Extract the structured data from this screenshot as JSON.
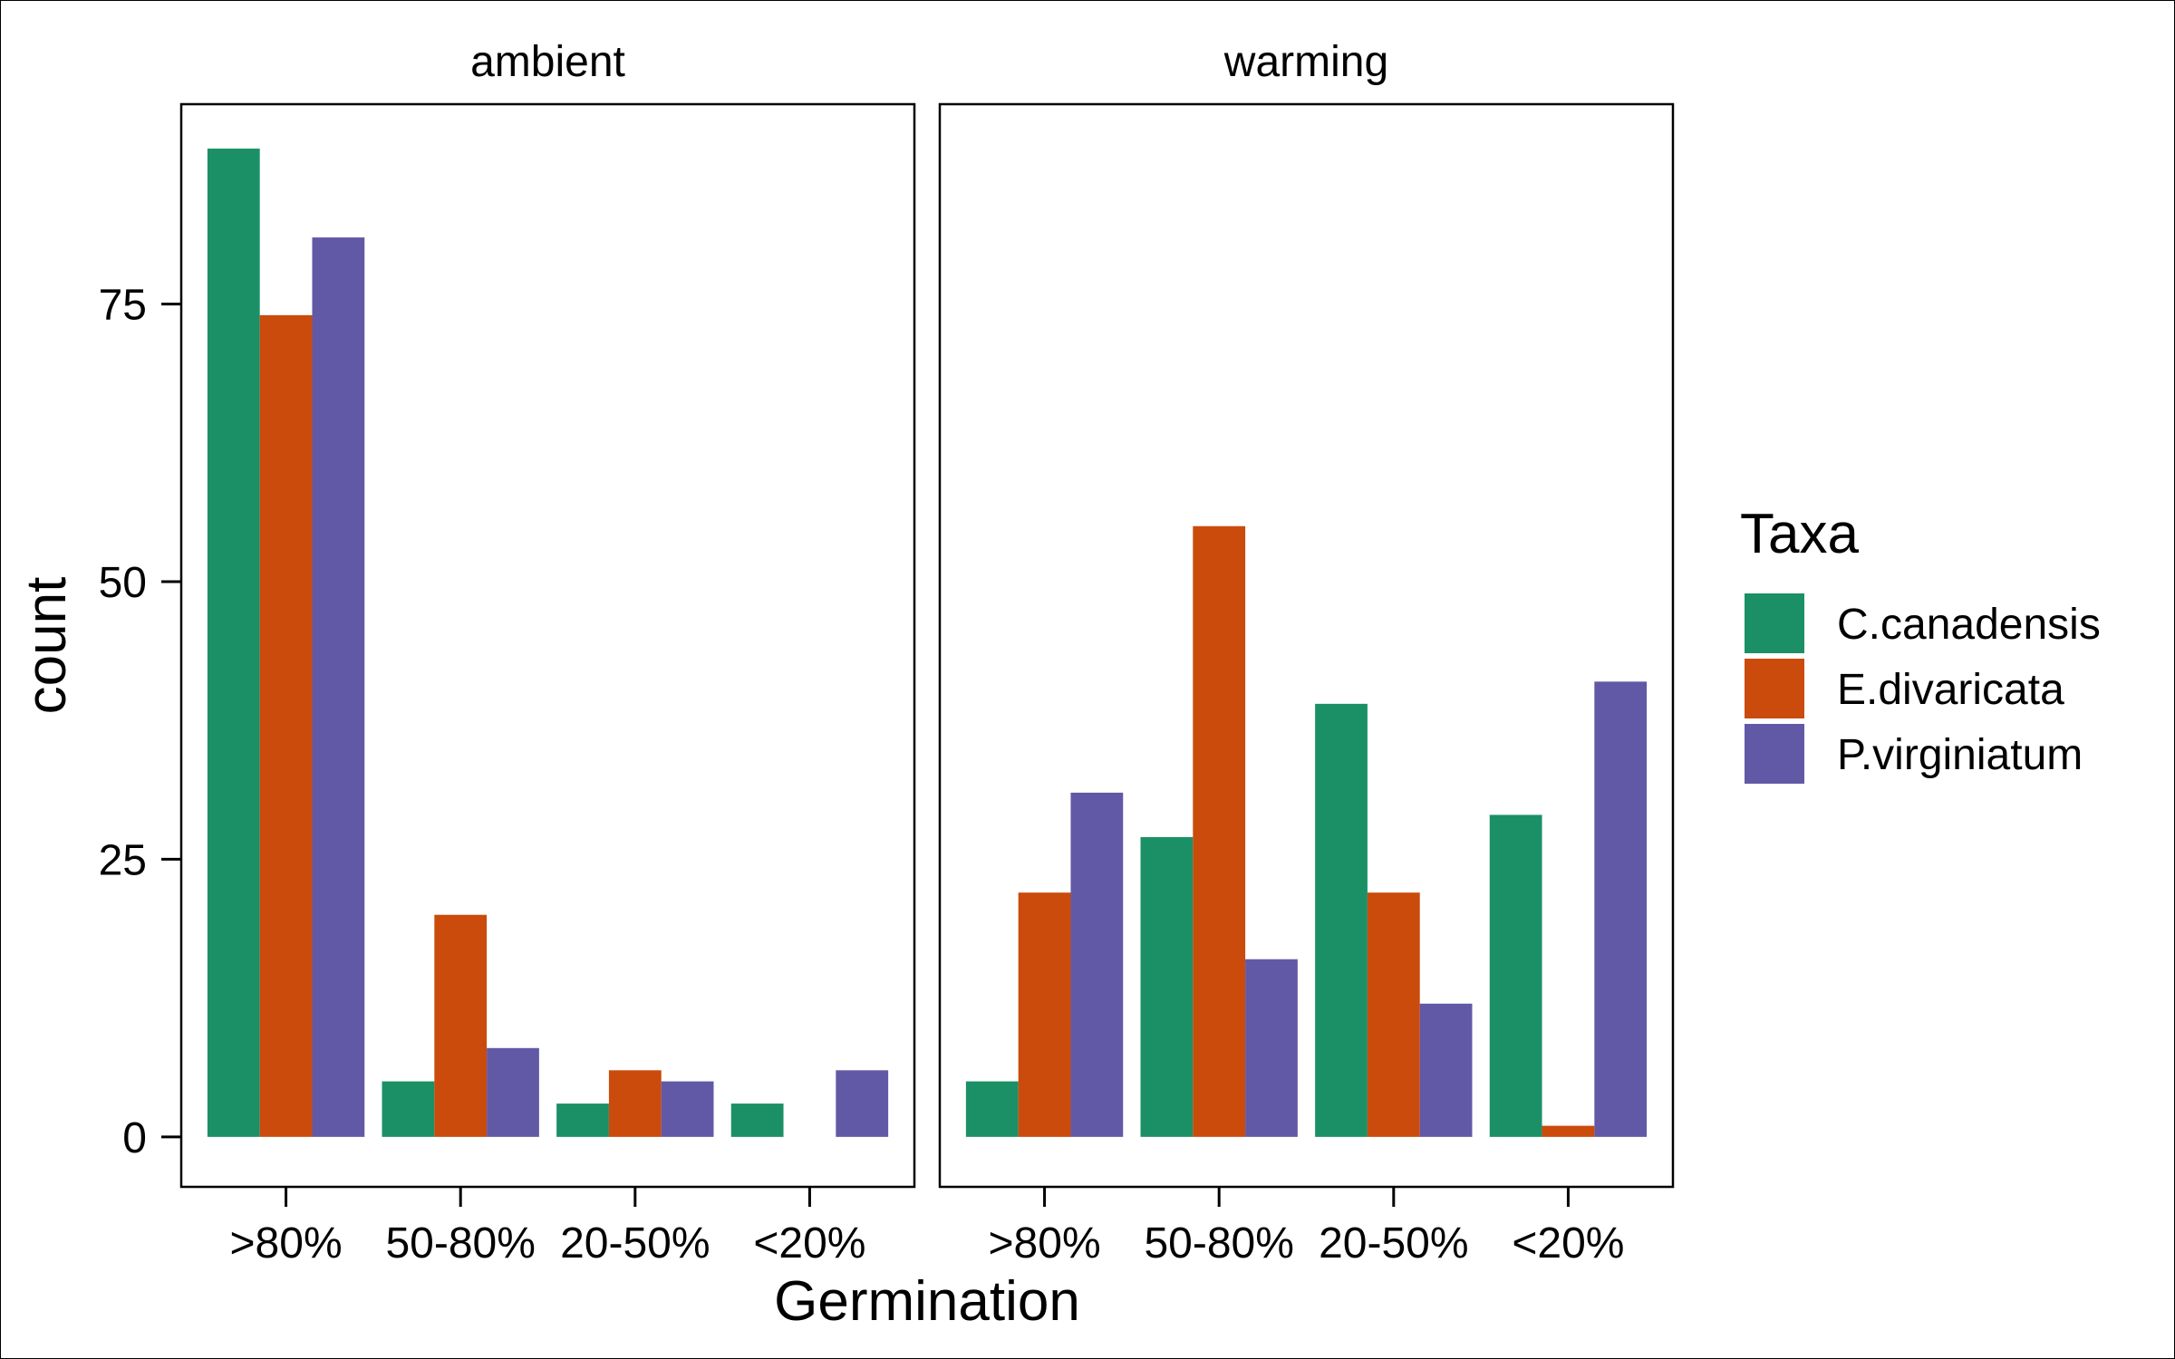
{
  "chart_data": {
    "type": "bar",
    "xlabel": "Germination",
    "ylabel": "count",
    "categories": [
      ">80%",
      "50-80%",
      "20-50%",
      "<20%"
    ],
    "ylim": [
      -4.5,
      93
    ],
    "yticks": [
      0,
      25,
      50,
      75
    ],
    "legend": {
      "title": "Taxa",
      "position": "right"
    },
    "panels": [
      {
        "title": "ambient",
        "series": [
          {
            "name": "C.canadensis",
            "values": [
              89,
              5,
              3,
              3
            ]
          },
          {
            "name": "E.divaricata",
            "values": [
              74,
              20,
              6,
              0
            ]
          },
          {
            "name": "P.virginiatum",
            "values": [
              81,
              8,
              5,
              6
            ]
          }
        ]
      },
      {
        "title": "warming",
        "series": [
          {
            "name": "C.canadensis",
            "values": [
              5,
              27,
              39,
              29
            ]
          },
          {
            "name": "E.divaricata",
            "values": [
              22,
              55,
              22,
              1
            ]
          },
          {
            "name": "P.virginiatum",
            "values": [
              31,
              16,
              12,
              41
            ]
          }
        ]
      }
    ],
    "colors": {
      "C.canadensis": "#1b9066",
      "E.divaricata": "#ca4b0c",
      "P.virginiatum": "#6259a6"
    },
    "grid": false
  }
}
